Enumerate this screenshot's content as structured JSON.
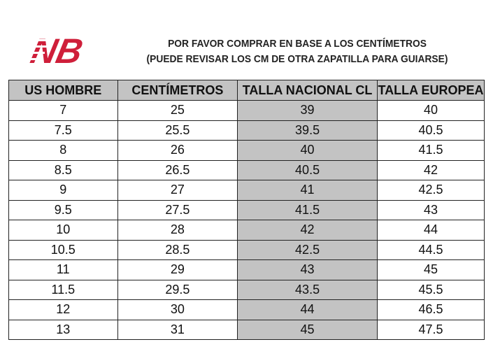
{
  "logo": {
    "text": "NB",
    "color": "#cf1f3a"
  },
  "title": {
    "line1": "POR FAVOR COMPRAR EN BASE A LOS CENTÍMETROS",
    "line2": "(PUEDE REVISAR LOS CM DE OTRA ZAPATILLA PARA GUIARSE)"
  },
  "table": {
    "headers": [
      "US HOMBRE",
      "CENTÍMETROS",
      "TALLA NACIONAL CL",
      "TALLA EUROPEA"
    ],
    "rows": [
      [
        "7",
        "25",
        "39",
        "40"
      ],
      [
        "7.5",
        "25.5",
        "39.5",
        "40.5"
      ],
      [
        "8",
        "26",
        "40",
        "41.5"
      ],
      [
        "8.5",
        "26.5",
        "40.5",
        "42"
      ],
      [
        "9",
        "27",
        "41",
        "42.5"
      ],
      [
        "9.5",
        "27.5",
        "41.5",
        "43"
      ],
      [
        "10",
        "28",
        "42",
        "44"
      ],
      [
        "10.5",
        "28.5",
        "42.5",
        "44.5"
      ],
      [
        "11",
        "29",
        "43",
        "45"
      ],
      [
        "11.5",
        "29.5",
        "43.5",
        "45.5"
      ],
      [
        "12",
        "30",
        "44",
        "46.5"
      ],
      [
        "13",
        "31",
        "45",
        "47.5"
      ]
    ]
  }
}
